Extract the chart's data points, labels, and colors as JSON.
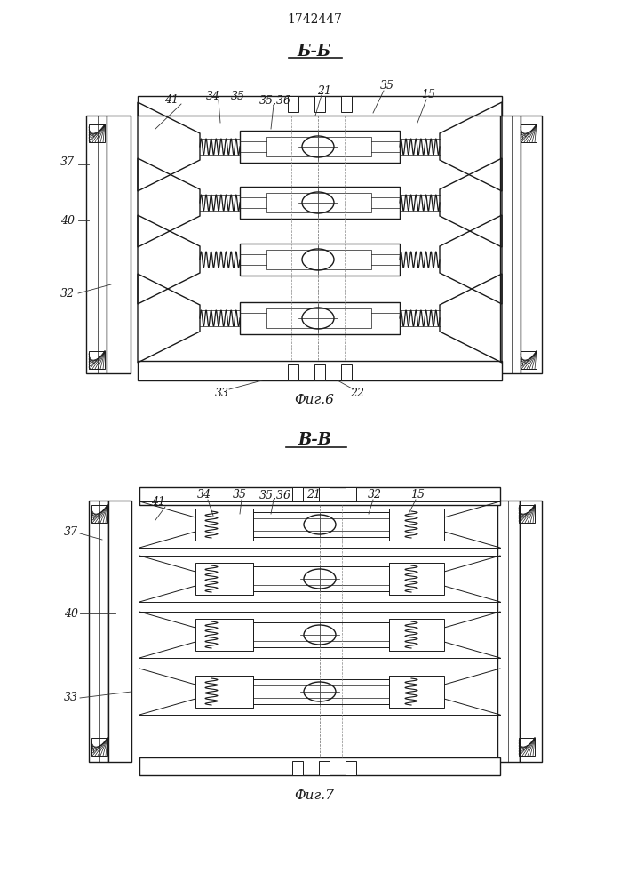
{
  "patent_number": "1742447",
  "fig6_title": "Б-Б",
  "fig7_title": "В-В",
  "fig6_caption": "Фиг.6",
  "fig7_caption": "Фиг.7",
  "line_color": "#1a1a1a",
  "bg_color": "#ffffff"
}
